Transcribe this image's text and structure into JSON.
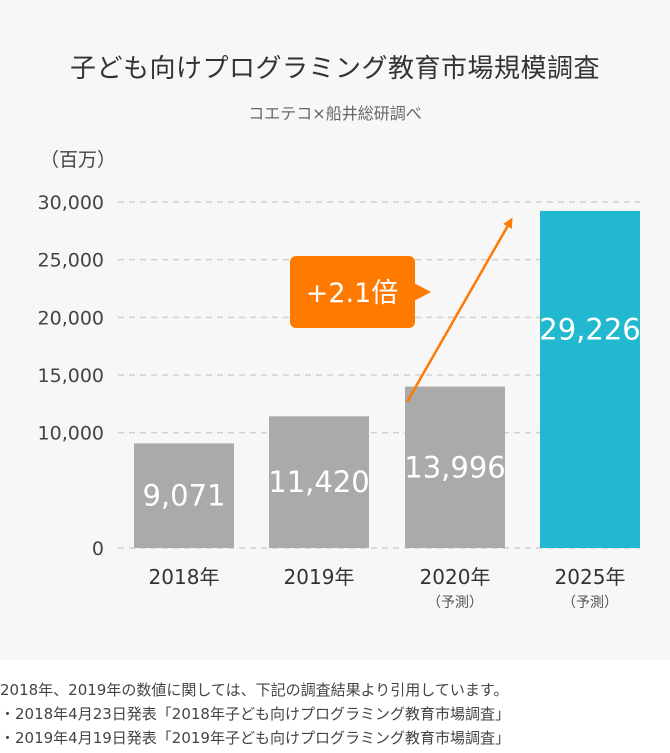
{
  "chart_data": {
    "type": "bar",
    "title": "子ども向けプログラミング教育市場規模調査",
    "subtitle": "コエテコ×船井総研調べ",
    "unit_label": "（百万）",
    "categories": [
      "2018年",
      "2019年",
      "2020年",
      "2025年"
    ],
    "category_sublabels": [
      "",
      "",
      "（予測）",
      "（予測）"
    ],
    "values": [
      9071,
      11420,
      13996,
      29226
    ],
    "value_labels": [
      "9,071",
      "11,420",
      "13,996",
      "29,226"
    ],
    "yticks": [
      0,
      10000,
      15000,
      20000,
      25000,
      30000
    ],
    "ytick_labels": [
      "0",
      "10,000",
      "15,000",
      "20,000",
      "25,000",
      "30,000"
    ],
    "ylim": [
      0,
      30000
    ],
    "grid": true,
    "annotation": "+2.1倍",
    "colors": {
      "bar": "#aaaaaa",
      "highlight_bar": "#22b8cf",
      "annotation": "#ff7a00",
      "grid": "#d0d0d0"
    },
    "highlight_index": 3
  },
  "notes": [
    "2018年、2019年の数値に関しては、下記の調査結果より引用しています。",
    "・2018年4月23日発表「2018年子ども向けプログラミング教育市場調査」",
    "・2019年4月19日発表「2019年子ども向けプログラミング教育市場調査」"
  ]
}
